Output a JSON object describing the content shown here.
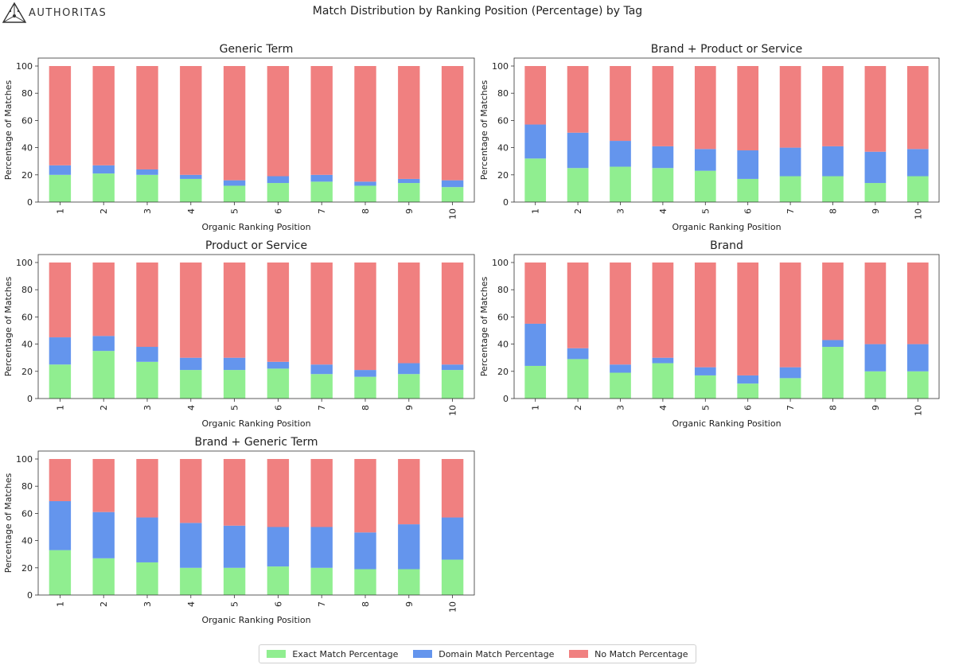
{
  "header": {
    "logo_text": "AUTHORITAS",
    "main_title": "Match Distribution by Ranking Position (Percentage) by Tag"
  },
  "colors": {
    "exact": "#90EE90",
    "domain": "#6495ED",
    "none": "#F08080"
  },
  "legend": {
    "items": [
      {
        "label": "Exact Match Percentage",
        "color": "#90EE90"
      },
      {
        "label": "Domain Match Percentage",
        "color": "#6495ED"
      },
      {
        "label": "No Match Percentage",
        "color": "#F08080"
      }
    ]
  },
  "chart_data": [
    {
      "type": "bar",
      "stacked": true,
      "title": "Generic Term",
      "xlabel": "Organic Ranking Position",
      "ylabel": "Percentage of Matches",
      "ylim": [
        0,
        100
      ],
      "yticks": [
        0,
        20,
        40,
        60,
        80,
        100
      ],
      "categories": [
        "1",
        "2",
        "3",
        "4",
        "5",
        "6",
        "7",
        "8",
        "9",
        "10"
      ],
      "series": [
        {
          "name": "Exact Match Percentage",
          "values": [
            20,
            21,
            20,
            17,
            12,
            14,
            15,
            12,
            14,
            11
          ]
        },
        {
          "name": "Domain Match Percentage",
          "values": [
            7,
            6,
            4,
            3,
            4,
            5,
            5,
            3,
            3,
            5
          ]
        },
        {
          "name": "No Match Percentage",
          "values": [
            73,
            73,
            76,
            80,
            84,
            81,
            80,
            85,
            83,
            84
          ]
        }
      ]
    },
    {
      "type": "bar",
      "stacked": true,
      "title": "Brand + Product or Service",
      "xlabel": "Organic Ranking Position",
      "ylabel": "Percentage of Matches",
      "ylim": [
        0,
        100
      ],
      "yticks": [
        0,
        20,
        40,
        60,
        80,
        100
      ],
      "categories": [
        "1",
        "2",
        "3",
        "4",
        "5",
        "6",
        "7",
        "8",
        "9",
        "10"
      ],
      "series": [
        {
          "name": "Exact Match Percentage",
          "values": [
            32,
            25,
            26,
            25,
            23,
            17,
            19,
            19,
            14,
            19
          ]
        },
        {
          "name": "Domain Match Percentage",
          "values": [
            25,
            26,
            19,
            16,
            16,
            21,
            21,
            22,
            23,
            20
          ]
        },
        {
          "name": "No Match Percentage",
          "values": [
            43,
            49,
            55,
            59,
            61,
            62,
            60,
            59,
            63,
            61
          ]
        }
      ]
    },
    {
      "type": "bar",
      "stacked": true,
      "title": "Product or Service",
      "xlabel": "Organic Ranking Position",
      "ylabel": "Percentage of Matches",
      "ylim": [
        0,
        100
      ],
      "yticks": [
        0,
        20,
        40,
        60,
        80,
        100
      ],
      "categories": [
        "1",
        "2",
        "3",
        "4",
        "5",
        "6",
        "7",
        "8",
        "9",
        "10"
      ],
      "series": [
        {
          "name": "Exact Match Percentage",
          "values": [
            25,
            35,
            27,
            21,
            21,
            22,
            18,
            16,
            18,
            21
          ]
        },
        {
          "name": "Domain Match Percentage",
          "values": [
            20,
            11,
            11,
            9,
            9,
            5,
            7,
            5,
            8,
            4
          ]
        },
        {
          "name": "No Match Percentage",
          "values": [
            55,
            54,
            62,
            70,
            70,
            73,
            75,
            79,
            74,
            75
          ]
        }
      ]
    },
    {
      "type": "bar",
      "stacked": true,
      "title": "Brand",
      "xlabel": "Organic Ranking Position",
      "ylabel": "Percentage of Matches",
      "ylim": [
        0,
        100
      ],
      "yticks": [
        0,
        20,
        40,
        60,
        80,
        100
      ],
      "categories": [
        "1",
        "2",
        "3",
        "4",
        "5",
        "6",
        "7",
        "8",
        "9",
        "10"
      ],
      "series": [
        {
          "name": "Exact Match Percentage",
          "values": [
            24,
            29,
            19,
            26,
            17,
            11,
            15,
            38,
            20,
            20
          ]
        },
        {
          "name": "Domain Match Percentage",
          "values": [
            31,
            8,
            6,
            4,
            6,
            6,
            8,
            5,
            20,
            20
          ]
        },
        {
          "name": "No Match Percentage",
          "values": [
            45,
            63,
            75,
            70,
            77,
            83,
            77,
            57,
            60,
            60
          ]
        }
      ]
    },
    {
      "type": "bar",
      "stacked": true,
      "title": "Brand + Generic Term",
      "xlabel": "Organic Ranking Position",
      "ylabel": "Percentage of Matches",
      "ylim": [
        0,
        100
      ],
      "yticks": [
        0,
        20,
        40,
        60,
        80,
        100
      ],
      "categories": [
        "1",
        "2",
        "3",
        "4",
        "5",
        "6",
        "7",
        "8",
        "9",
        "10"
      ],
      "series": [
        {
          "name": "Exact Match Percentage",
          "values": [
            33,
            27,
            24,
            20,
            20,
            21,
            20,
            19,
            19,
            26
          ]
        },
        {
          "name": "Domain Match Percentage",
          "values": [
            36,
            34,
            33,
            33,
            31,
            29,
            30,
            27,
            33,
            31
          ]
        },
        {
          "name": "No Match Percentage",
          "values": [
            31,
            39,
            43,
            47,
            49,
            50,
            50,
            54,
            48,
            43
          ]
        }
      ]
    }
  ]
}
